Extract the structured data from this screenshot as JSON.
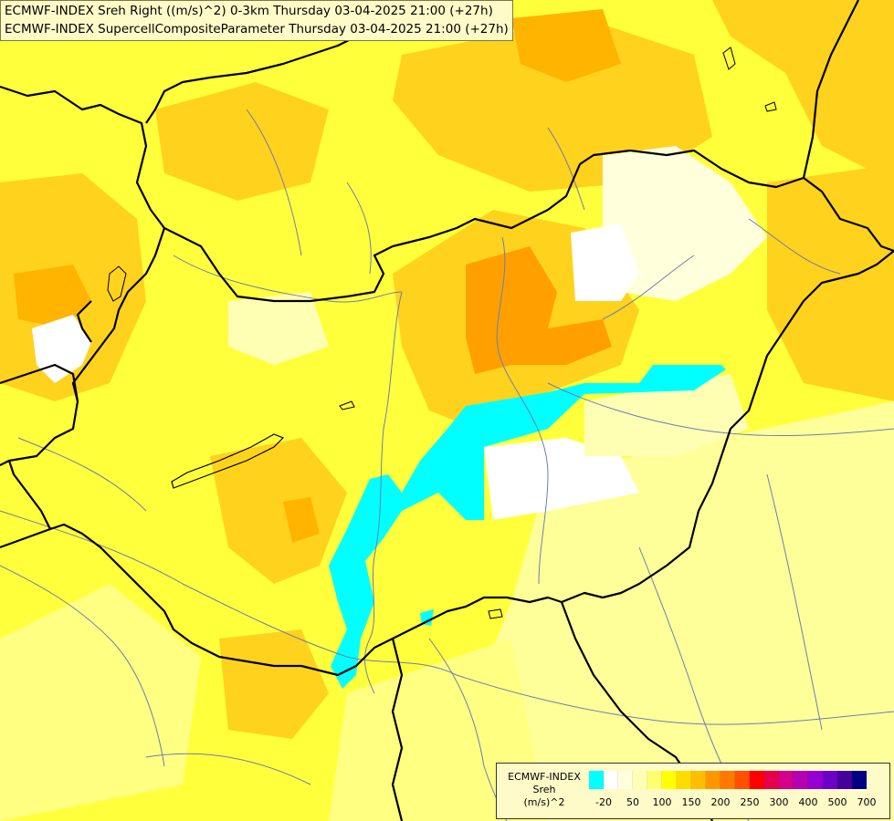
{
  "map": {
    "titles": [
      "ECMWF-INDEX Sreh Right ((m/s)^2) 0-3km Thursday 03-04-2025 21:00 (+27h)",
      "ECMWF-INDEX SupercellCompositeParameter Thursday 03-04-2025 21:00 (+27h)"
    ],
    "colors": {
      "background": "#ffff66",
      "cyan": "#00ffff",
      "white": "#ffffff",
      "pale_yellow": "#ffffb4",
      "yellow": "#ffff00",
      "gold": "#ffd700",
      "orange_light": "#ffb400",
      "orange": "#ff9600",
      "border": "#000000",
      "river": "#6a7fae"
    }
  },
  "legend": {
    "title_line1": "ECMWF-INDEX",
    "title_line2": "Sreh",
    "title_line3": "(m/s)^2",
    "swatches": [
      "#00ffff",
      "#ffffff",
      "#ffffdc",
      "#ffffb4",
      "#ffff6e",
      "#ffff00",
      "#ffdc00",
      "#ffbe00",
      "#ff9600",
      "#ff7800",
      "#ff5000",
      "#ff0000",
      "#e6004b",
      "#d2008c",
      "#b400b4",
      "#9600d2",
      "#6e00c8",
      "#46009b",
      "#000080"
    ],
    "ticks": [
      "-20",
      "50",
      "100",
      "150",
      "200",
      "250",
      "300",
      "400",
      "500",
      "700"
    ]
  }
}
